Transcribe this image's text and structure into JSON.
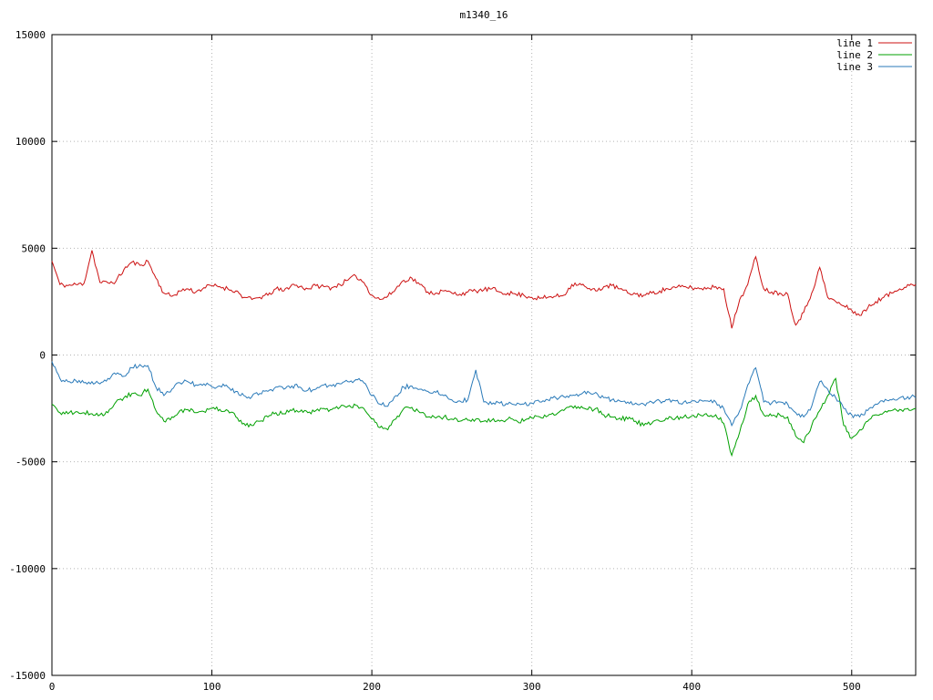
{
  "window": {
    "background": "#ffffff"
  },
  "chart_data": {
    "type": "line",
    "title": "m1340_16",
    "xlabel": "",
    "ylabel": "",
    "xlim": [
      0,
      540
    ],
    "ylim": [
      -15000,
      15000
    ],
    "xticks": [
      0,
      100,
      200,
      300,
      400,
      500
    ],
    "yticks": [
      -15000,
      -10000,
      -5000,
      0,
      5000,
      10000,
      15000
    ],
    "grid": "dotted",
    "grid_color": "#b4b4b4",
    "axis_color": "#000000",
    "legend_position": "top-right",
    "x_start": 0,
    "x_step": 5,
    "noise": {
      "amplitude": 110,
      "seed": 11,
      "subdivisions": 5
    },
    "series": [
      {
        "name": "line 1",
        "color": "#cc1111",
        "values": [
          4400,
          3300,
          3250,
          3300,
          3350,
          4900,
          3400,
          3380,
          3450,
          4000,
          4350,
          4200,
          4400,
          3600,
          2900,
          2750,
          3000,
          3100,
          2950,
          3150,
          3250,
          3200,
          3100,
          3000,
          2700,
          2600,
          2700,
          2800,
          3100,
          3000,
          3300,
          3200,
          3100,
          3250,
          3200,
          3150,
          3300,
          3500,
          3700,
          3400,
          2800,
          2600,
          2750,
          3100,
          3500,
          3600,
          3300,
          2950,
          2900,
          3000,
          2900,
          2850,
          2950,
          3000,
          3050,
          3100,
          2950,
          2900,
          2850,
          2800,
          2700,
          2650,
          2700,
          2750,
          2800,
          3300,
          3350,
          3100,
          3000,
          3200,
          3250,
          3100,
          2900,
          2850,
          2800,
          2900,
          3000,
          3100,
          3150,
          3200,
          3150,
          3100,
          3150,
          3200,
          3100,
          1250,
          2600,
          3300,
          4600,
          3100,
          2950,
          2900,
          2850,
          1400,
          2000,
          2900,
          4100,
          2700,
          2500,
          2300,
          2100,
          1850,
          2200,
          2500,
          2700,
          2900,
          3100,
          3300,
          3300
        ]
      },
      {
        "name": "line 2",
        "color": "#00a000",
        "values": [
          -2300,
          -2700,
          -2750,
          -2650,
          -2700,
          -2750,
          -2800,
          -2700,
          -2200,
          -2000,
          -1800,
          -1900,
          -1600,
          -2600,
          -3100,
          -2900,
          -2600,
          -2550,
          -2700,
          -2650,
          -2500,
          -2550,
          -2600,
          -2900,
          -3200,
          -3300,
          -3100,
          -2900,
          -2700,
          -2750,
          -2600,
          -2650,
          -2700,
          -2600,
          -2500,
          -2550,
          -2450,
          -2400,
          -2350,
          -2500,
          -3000,
          -3400,
          -3500,
          -3000,
          -2500,
          -2450,
          -2700,
          -2900,
          -2950,
          -2900,
          -3000,
          -3100,
          -3050,
          -3000,
          -3100,
          -3050,
          -3100,
          -3000,
          -3050,
          -3100,
          -2950,
          -2900,
          -2850,
          -2800,
          -2600,
          -2400,
          -2500,
          -2550,
          -2500,
          -2800,
          -2900,
          -2950,
          -3000,
          -3100,
          -3300,
          -3200,
          -3100,
          -3000,
          -2950,
          -2900,
          -2850,
          -2800,
          -2850,
          -2800,
          -3200,
          -4700,
          -3600,
          -2300,
          -1900,
          -2800,
          -2850,
          -2800,
          -2900,
          -3800,
          -4100,
          -3300,
          -2600,
          -1900,
          -1100,
          -3300,
          -3900,
          -3500,
          -3100,
          -2800,
          -2700,
          -2600,
          -2550,
          -2500,
          -2500
        ]
      },
      {
        "name": "line 3",
        "color": "#2a7ab9",
        "values": [
          -300,
          -1100,
          -1250,
          -1200,
          -1300,
          -1250,
          -1350,
          -1100,
          -900,
          -1000,
          -600,
          -450,
          -500,
          -1500,
          -1900,
          -1600,
          -1300,
          -1250,
          -1400,
          -1350,
          -1500,
          -1450,
          -1500,
          -1700,
          -1900,
          -1950,
          -1800,
          -1700,
          -1500,
          -1600,
          -1450,
          -1500,
          -1650,
          -1600,
          -1400,
          -1450,
          -1350,
          -1250,
          -1150,
          -1300,
          -1900,
          -2300,
          -2400,
          -1900,
          -1500,
          -1450,
          -1600,
          -1700,
          -1750,
          -1900,
          -2100,
          -2150,
          -2100,
          -700,
          -2200,
          -2300,
          -2250,
          -2300,
          -2350,
          -2300,
          -2250,
          -2200,
          -2100,
          -2000,
          -1950,
          -1900,
          -1850,
          -1700,
          -1750,
          -2000,
          -2100,
          -2150,
          -2200,
          -2250,
          -2300,
          -2200,
          -2150,
          -2100,
          -2150,
          -2200,
          -2150,
          -2100,
          -2150,
          -2200,
          -2500,
          -3300,
          -2600,
          -1400,
          -600,
          -2200,
          -2250,
          -2200,
          -2300,
          -2700,
          -2900,
          -2400,
          -1250,
          -1600,
          -2000,
          -2500,
          -2800,
          -2900,
          -2600,
          -2300,
          -2200,
          -2100,
          -2000,
          -1950,
          -2000
        ]
      }
    ]
  }
}
